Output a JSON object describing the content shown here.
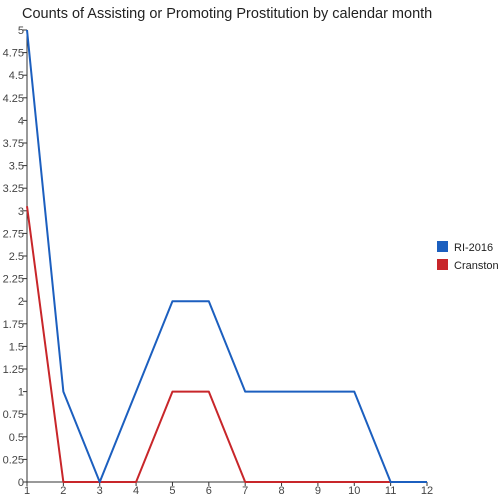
{
  "chart_data": {
    "type": "line",
    "title": "Counts of Assisting or Promoting Prostitution by calendar month",
    "x": [
      "1",
      "2",
      "3",
      "4",
      "5",
      "6",
      "7",
      "8",
      "9",
      "10",
      "11",
      "12"
    ],
    "xlabel": "",
    "ylabel": "",
    "ylim": [
      0,
      5
    ],
    "yticks": [
      "0",
      "0.25",
      "0.5",
      "0.75",
      "1",
      "1.25",
      "1.5",
      "1.75",
      "2",
      "2.25",
      "2.5",
      "2.75",
      "3",
      "3.25",
      "3.5",
      "3.75",
      "4",
      "4.25",
      "4.5",
      "4.75",
      "5"
    ],
    "grid": false,
    "legend_position": "right",
    "series": [
      {
        "name": "RI-2016",
        "color": "#1c5fbf",
        "values": [
          5,
          1,
          0,
          1,
          2,
          2,
          1,
          1,
          1,
          1,
          0,
          0
        ]
      },
      {
        "name": "Cranston",
        "color": "#c8262a",
        "values": [
          3.05,
          0,
          0,
          0,
          1,
          1,
          0,
          0,
          0,
          0,
          0,
          0
        ]
      }
    ]
  }
}
